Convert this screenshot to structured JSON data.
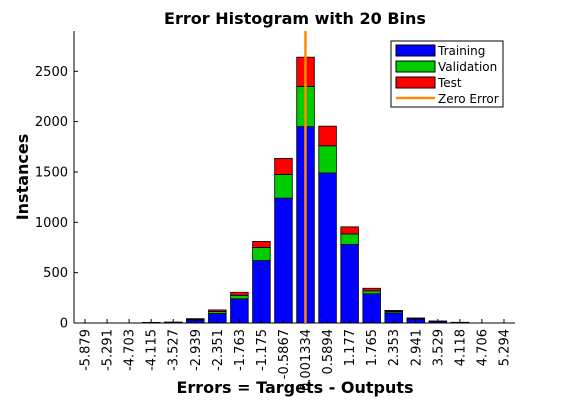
{
  "chart_data": {
    "type": "bar",
    "stacked": true,
    "title": "Error Histogram with 20 Bins",
    "xlabel": "Errors = Targets - Outputs",
    "ylabel": "Instances",
    "ylim": [
      0,
      2900
    ],
    "yticks": [
      0,
      500,
      1000,
      1500,
      2000,
      2500
    ],
    "grid": false,
    "legend_position": "top-right",
    "categories": [
      "-5.879",
      "-5.291",
      "-4.703",
      "-4.115",
      "-3.527",
      "-2.939",
      "-2.351",
      "-1.763",
      "-1.175",
      "-0.5867",
      "0.001334",
      "0.5894",
      "1.177",
      "1.765",
      "2.353",
      "2.941",
      "3.529",
      "4.118",
      "4.706",
      "5.294"
    ],
    "series": [
      {
        "name": "Training",
        "color": "#0000ff",
        "values": [
          0,
          0,
          0,
          3,
          5,
          30,
          95,
          240,
          620,
          1240,
          1950,
          1490,
          780,
          290,
          100,
          40,
          15,
          5,
          0,
          0
        ]
      },
      {
        "name": "Validation",
        "color": "#00cc00",
        "values": [
          0,
          0,
          0,
          1,
          2,
          7,
          20,
          35,
          130,
          235,
          400,
          270,
          105,
          30,
          15,
          5,
          3,
          1,
          0,
          0
        ]
      },
      {
        "name": "Test",
        "color": "#ff0000",
        "values": [
          0,
          0,
          0,
          1,
          2,
          6,
          15,
          30,
          60,
          160,
          290,
          195,
          70,
          25,
          10,
          5,
          2,
          1,
          0,
          0
        ]
      }
    ],
    "zero_error": {
      "name": "Zero Error",
      "color": "#ff8c00",
      "x": 0
    }
  }
}
